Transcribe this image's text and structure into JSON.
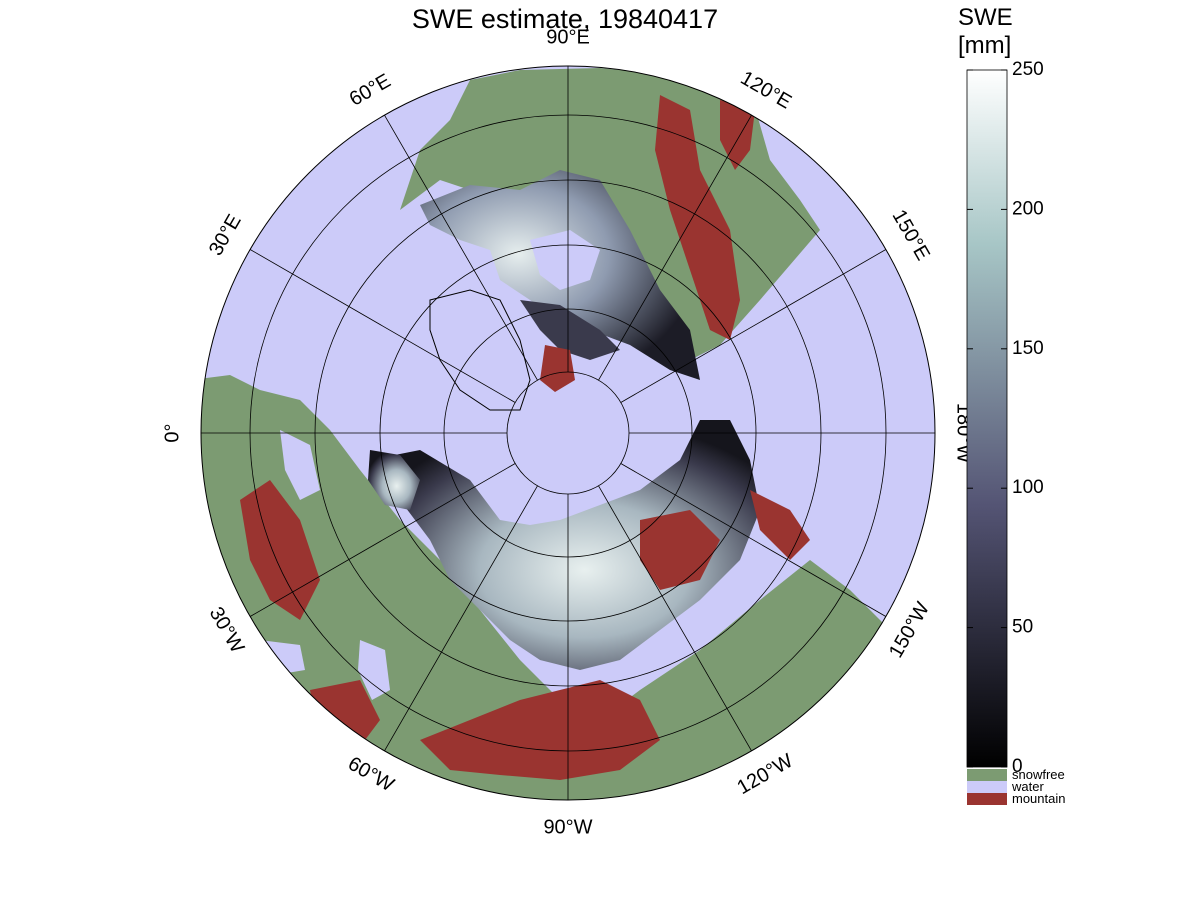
{
  "map": {
    "title": "SWE estimate, 19840417",
    "projection": "north-polar-stereographic",
    "longitude_labels": [
      {
        "text": "90°W",
        "lon": -90
      },
      {
        "text": "120°W",
        "lon": -120
      },
      {
        "text": "150°W",
        "lon": -150
      },
      {
        "text": "180°W",
        "lon": 180
      },
      {
        "text": "150°E",
        "lon": 150
      },
      {
        "text": "120°E",
        "lon": 120
      },
      {
        "text": "90°E",
        "lon": 90
      },
      {
        "text": "60°E",
        "lon": 60
      },
      {
        "text": "30°E",
        "lon": 30
      },
      {
        "text": "0°",
        "lon": 0
      },
      {
        "text": "30°W",
        "lon": -30
      },
      {
        "text": "60°W",
        "lon": -60
      }
    ],
    "colors": {
      "water": "#cccbf9",
      "snowfree": "#7c9b72",
      "mountain": "#9a3430",
      "graticule": "#000000"
    }
  },
  "colorbar": {
    "title_line1": "SWE",
    "title_line2": "[mm]",
    "range": [
      0,
      250
    ],
    "ticks": [
      "250",
      "200",
      "150",
      "100",
      "50",
      "0"
    ],
    "colormap": "bone",
    "categories": [
      {
        "label": "snowfree",
        "color": "#7c9b72"
      },
      {
        "label": "water",
        "color": "#cccbf9"
      },
      {
        "label": "mountain",
        "color": "#9a3430"
      }
    ]
  }
}
